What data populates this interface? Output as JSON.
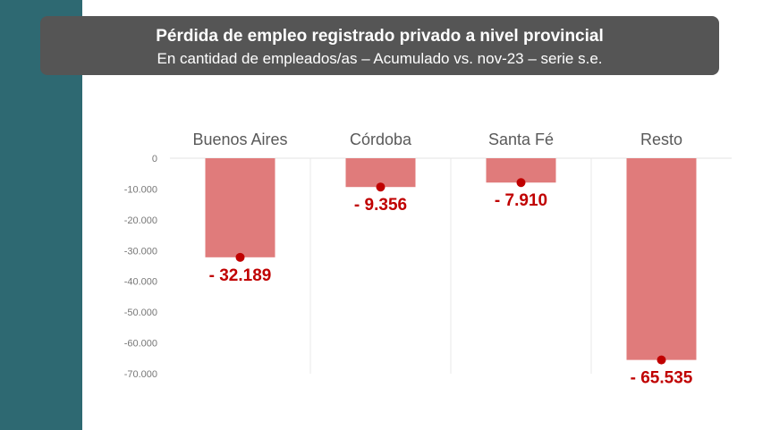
{
  "title": "Pérdida de empleo registrado privado a nivel provincial",
  "subtitle": "En cantidad de empleados/as – Acumulado vs. nov-23 – serie s.e.",
  "colors": {
    "side_band": "#2e6972",
    "title_box": "#555555",
    "bar": "#e07b7b",
    "marker": "#c00000",
    "data_label": "#c00000"
  },
  "chart_data": {
    "type": "bar",
    "title": "Pérdida de empleo registrado privado a nivel provincial",
    "subtitle": "En cantidad de empleados/as – Acumulado vs. nov-23 – serie s.e.",
    "categories": [
      "Buenos Aires",
      "Córdoba",
      "Santa Fé",
      "Resto"
    ],
    "values": [
      -32189,
      -9356,
      -7910,
      -65535
    ],
    "data_labels": [
      "- 32.189",
      "- 9.356",
      "- 7.910",
      "- 65.535"
    ],
    "ylim": [
      -70000,
      0
    ],
    "yticks": [
      0,
      -10000,
      -20000,
      -30000,
      -40000,
      -50000,
      -60000,
      -70000
    ],
    "ytick_labels": [
      "0",
      "-10.000",
      "-20.000",
      "-30.000",
      "-40.000",
      "-50.000",
      "-60.000",
      "-70.000"
    ],
    "category_axis_position": "top",
    "grid": false,
    "legend": "none"
  }
}
